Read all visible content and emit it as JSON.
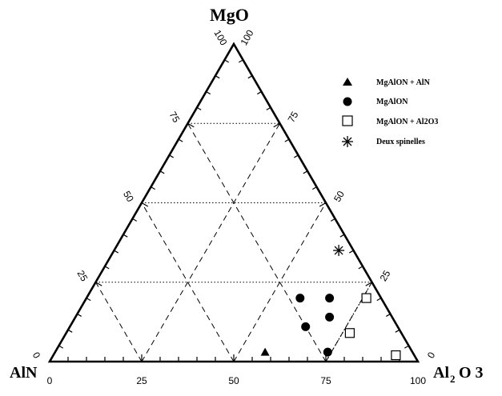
{
  "chart_data": {
    "type": "scatter",
    "subtype": "ternary",
    "vertices": {
      "top": {
        "label": "MgO"
      },
      "left": {
        "label": "AlN"
      },
      "right": {
        "label_main": "Al",
        "label_sub": "2",
        "label_end": "O 3"
      }
    },
    "ticks": {
      "bottom": [
        "0",
        "25",
        "50",
        "75",
        "100"
      ],
      "left": [
        "100",
        "75",
        "50",
        "25",
        "0"
      ],
      "right": [
        "100",
        "75",
        "50",
        "25",
        "0"
      ]
    },
    "grid": "dashed, every 25%",
    "legend": {
      "placement": "top-right",
      "items": [
        {
          "label": "MgAlON + AlN",
          "marker": "triangle-filled"
        },
        {
          "label": "MgAlON",
          "marker": "circle-filled"
        },
        {
          "label": "MgAlON + Al2O3",
          "marker": "square-open"
        },
        {
          "label": "Deux spinelles",
          "marker": "asterisk"
        }
      ]
    },
    "series": [
      {
        "name": "MgAlON + AlN",
        "marker": "triangle-filled",
        "points": [
          {
            "MgO": 3,
            "Al2O3": 57
          }
        ]
      },
      {
        "name": "MgAlON",
        "marker": "circle-filled",
        "points": [
          {
            "MgO": 20,
            "Al2O3": 58
          },
          {
            "MgO": 20,
            "Al2O3": 66
          },
          {
            "MgO": 14,
            "Al2O3": 69
          },
          {
            "MgO": 11,
            "Al2O3": 64
          },
          {
            "MgO": 3,
            "Al2O3": 74
          }
        ]
      },
      {
        "name": "MgAlON + Al2O3",
        "marker": "square-open",
        "points": [
          {
            "MgO": 20,
            "Al2O3": 76
          },
          {
            "MgO": 9,
            "Al2O3": 77
          },
          {
            "MgO": 2,
            "Al2O3": 93
          }
        ]
      },
      {
        "name": "Deux spinelles",
        "marker": "asterisk",
        "points": [
          {
            "MgO": 35,
            "Al2O3": 61
          }
        ]
      }
    ],
    "region_boundary": [
      {
        "MgO": 25,
        "Al2O3": 75
      },
      {
        "MgO": 0,
        "Al2O3": 75
      },
      {
        "MgO": 0,
        "Al2O3": 100
      }
    ]
  }
}
